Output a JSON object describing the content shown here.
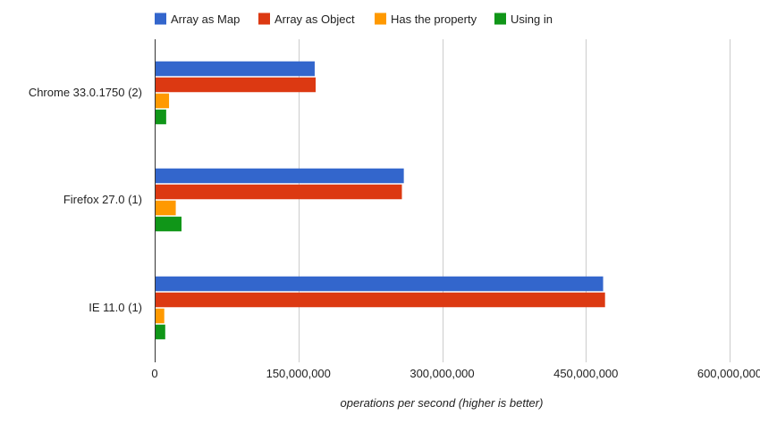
{
  "colors": {
    "Array as Map": "#3366cc",
    "Array as Object": "#dc3912",
    "Has the property": "#ff9900",
    "Using in": "#109618",
    "gridline": "#cccccc",
    "axis": "#333333"
  },
  "chart_data": {
    "type": "bar",
    "orientation": "horizontal",
    "title": "",
    "xlabel": "operations per second (higher is better)",
    "ylabel": "",
    "xlim": [
      0,
      600000000
    ],
    "x_ticks": [
      0,
      150000000,
      300000000,
      450000000,
      600000000
    ],
    "x_tick_labels": [
      "0",
      "150,000,000",
      "300,000,000",
      "450,000,000",
      "600,000,000"
    ],
    "grid": true,
    "legend_position": "top",
    "categories": [
      "Chrome 33.0.1750 (2)",
      "Firefox 27.0 (1)",
      "IE 11.0 (1)"
    ],
    "series": [
      {
        "name": "Array as Map",
        "values": [
          167000000,
          260000000,
          468000000
        ]
      },
      {
        "name": "Array as Object",
        "values": [
          168000000,
          258000000,
          470000000
        ]
      },
      {
        "name": "Has the property",
        "values": [
          15000000,
          22000000,
          10000000
        ]
      },
      {
        "name": "Using in",
        "values": [
          12000000,
          28000000,
          11000000
        ]
      }
    ]
  }
}
